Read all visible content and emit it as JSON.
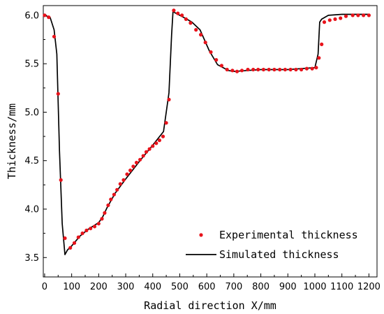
{
  "chart_data": {
    "type": "scatter",
    "title": "",
    "xlabel": "Radial direction X/mm",
    "ylabel": "Thickness/mm",
    "xlim": [
      -5,
      1230
    ],
    "ylim": [
      3.3,
      6.1
    ],
    "xticks": [
      0,
      100,
      200,
      300,
      400,
      500,
      600,
      700,
      800,
      900,
      1000,
      1100,
      1200
    ],
    "yticks": [
      3.5,
      4.0,
      4.5,
      5.0,
      5.5,
      6.0
    ],
    "ytick_labels": [
      "3.5",
      "4.0",
      "4.5",
      "5.0",
      "5.5",
      "6.0"
    ],
    "grid": false,
    "legend_position": "bottom-right",
    "series": [
      {
        "name": "Experimental thickness",
        "kind": "scatter",
        "color": "#e8131b",
        "x": [
          0,
          15,
          35,
          50,
          60,
          75,
          95,
          110,
          125,
          140,
          155,
          170,
          185,
          200,
          212,
          222,
          235,
          245,
          257,
          268,
          280,
          292,
          305,
          317,
          328,
          340,
          353,
          365,
          376,
          388,
          400,
          413,
          425,
          438,
          450,
          460,
          478,
          493,
          508,
          523,
          540,
          560,
          578,
          595,
          615,
          635,
          655,
          675,
          695,
          712,
          730,
          752,
          772,
          790,
          810,
          830,
          850,
          870,
          890,
          910,
          930,
          950,
          970,
          990,
          1005,
          1015,
          1025,
          1035,
          1055,
          1075,
          1095,
          1115,
          1140,
          1160,
          1180,
          1200
        ],
        "y": [
          6.0,
          5.98,
          5.78,
          5.19,
          4.3,
          3.7,
          3.6,
          3.65,
          3.71,
          3.75,
          3.78,
          3.8,
          3.82,
          3.85,
          3.9,
          3.96,
          4.04,
          4.1,
          4.15,
          4.2,
          4.26,
          4.3,
          4.36,
          4.4,
          4.44,
          4.48,
          4.51,
          4.55,
          4.59,
          4.62,
          4.65,
          4.68,
          4.71,
          4.75,
          4.89,
          5.13,
          6.05,
          6.02,
          6.0,
          5.96,
          5.92,
          5.85,
          5.8,
          5.72,
          5.62,
          5.54,
          5.48,
          5.44,
          5.43,
          5.42,
          5.43,
          5.44,
          5.44,
          5.44,
          5.44,
          5.44,
          5.44,
          5.44,
          5.44,
          5.44,
          5.44,
          5.44,
          5.45,
          5.45,
          5.46,
          5.56,
          5.7,
          5.93,
          5.95,
          5.96,
          5.97,
          5.99,
          6.0,
          6.0,
          6.0,
          6.0
        ]
      },
      {
        "name": "Simulated thickness",
        "kind": "line",
        "color": "#000000",
        "x": [
          0,
          20,
          35,
          45,
          55,
          65,
          75,
          85,
          100,
          130,
          160,
          200,
          215,
          230,
          260,
          300,
          350,
          400,
          440,
          460,
          470,
          475,
          480,
          500,
          520,
          545,
          575,
          610,
          640,
          680,
          700,
          750,
          800,
          900,
          1000,
          1012,
          1018,
          1025,
          1050,
          1100,
          1150,
          1200
        ],
        "y": [
          6.0,
          5.98,
          5.85,
          5.6,
          4.6,
          3.85,
          3.53,
          3.58,
          3.62,
          3.72,
          3.79,
          3.86,
          3.92,
          4.01,
          4.16,
          4.31,
          4.49,
          4.66,
          4.8,
          5.2,
          5.8,
          6.04,
          6.03,
          6.0,
          5.97,
          5.93,
          5.85,
          5.63,
          5.49,
          5.43,
          5.42,
          5.43,
          5.44,
          5.44,
          5.46,
          5.6,
          5.93,
          5.96,
          6.0,
          6.01,
          6.01,
          6.01
        ]
      }
    ]
  }
}
